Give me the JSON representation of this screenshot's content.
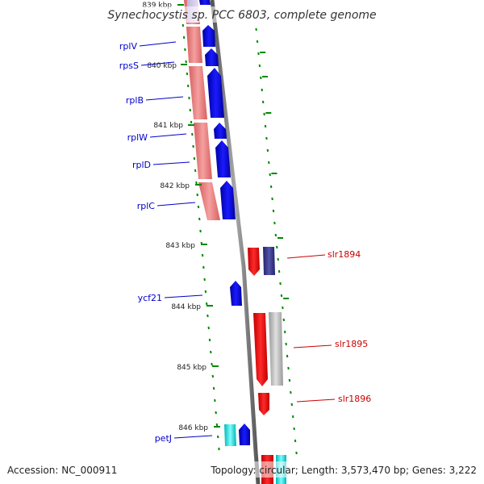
{
  "title": "Synechocystis sp. PCC 6803, complete genome",
  "accession": "Accession: NC_000911",
  "topology": "Topology: circular; Length: 3,573,470 bp; Genes: 3,222",
  "ticks": [
    {
      "label": "839 kbp"
    },
    {
      "label": "840 kbp"
    },
    {
      "label": "841 kbp"
    },
    {
      "label": "842 kbp"
    },
    {
      "label": "843 kbp"
    },
    {
      "label": "844 kbp"
    },
    {
      "label": "845 kbp"
    },
    {
      "label": "846 kbp"
    }
  ],
  "genes": [
    {
      "label": "rplV",
      "side": "left",
      "color": "#0000cc"
    },
    {
      "label": "rpsS",
      "side": "left",
      "color": "#0000cc"
    },
    {
      "label": "rplB",
      "side": "left",
      "color": "#0000cc"
    },
    {
      "label": "rplW",
      "side": "left",
      "color": "#0000cc"
    },
    {
      "label": "rplD",
      "side": "left",
      "color": "#0000cc"
    },
    {
      "label": "rplC",
      "side": "left",
      "color": "#0000cc"
    },
    {
      "label": "ycf21",
      "side": "left",
      "color": "#0000cc"
    },
    {
      "label": "petJ",
      "side": "left",
      "color": "#0000cc"
    },
    {
      "label": "slr1894",
      "side": "right",
      "color": "#cc0000"
    },
    {
      "label": "slr1895",
      "side": "right",
      "color": "#cc0000"
    },
    {
      "label": "slr1896",
      "side": "right",
      "color": "#cc0000"
    }
  ],
  "colors": {
    "forward_gene": "#0000ee",
    "reverse_gene": "#ff0000",
    "pink_band": "#e88080",
    "backbone": "#888888",
    "tick_green": "#008800",
    "navy_gene": "#333399",
    "gray_gene": "#bbbbbb",
    "cyan_gene": "#00e5e5"
  }
}
